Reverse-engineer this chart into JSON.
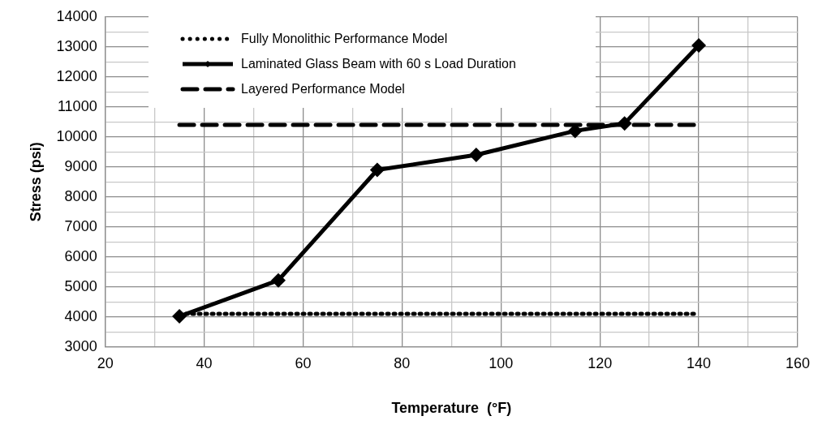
{
  "chart_data": {
    "type": "line",
    "xlabel": "Temperature  (°F)",
    "ylabel": "Stress (psi)",
    "xlim": [
      20,
      160
    ],
    "xticks": [
      20,
      {
        "value": 30,
        "label": null
      },
      40,
      {
        "value": 50,
        "label": null
      },
      60,
      {
        "value": 70,
        "label": null
      },
      80,
      {
        "value": 90,
        "label": null
      },
      100,
      {
        "value": 110,
        "label": null
      },
      120,
      {
        "value": 130,
        "label": null
      },
      140,
      {
        "value": 150,
        "label": null
      },
      160
    ],
    "ylim": [
      3000,
      14000
    ],
    "yticks": [
      3000,
      {
        "value": 3500,
        "label": null
      },
      4000,
      {
        "value": 4500,
        "label": null
      },
      5000,
      {
        "value": 5500,
        "label": null
      },
      6000,
      {
        "value": 6500,
        "label": null
      },
      7000,
      {
        "value": 7500,
        "label": null
      },
      8000,
      {
        "value": 8500,
        "label": null
      },
      9000,
      {
        "value": 9500,
        "label": null
      },
      10000,
      {
        "value": 10500,
        "label": null
      },
      11000,
      {
        "value": 11500,
        "label": null
      },
      12000,
      {
        "value": 12500,
        "label": null
      },
      13000,
      {
        "value": 13500,
        "label": null
      },
      14000
    ],
    "grid": true,
    "legend": "top left",
    "series": [
      {
        "name": "Fully Monolithic Performance Model",
        "color": "#000000",
        "x": [
          35,
          140
        ],
        "values": [
          4100,
          4100
        ],
        "line_style": "dotted",
        "marker": "none"
      },
      {
        "name": "Laminated Glass Beam with 60 s Load Duration",
        "color": "#000000",
        "x": [
          35,
          55,
          75,
          95,
          115,
          125,
          140
        ],
        "values": [
          4020,
          5220,
          8900,
          9400,
          10200,
          10450,
          13050
        ],
        "line_style": "solid",
        "marker": "diamond"
      },
      {
        "name": "Layered Performance Model",
        "color": "#000000",
        "x": [
          35,
          140
        ],
        "values": [
          10400,
          10400
        ],
        "line_style": "dashed",
        "marker": "none"
      }
    ]
  }
}
